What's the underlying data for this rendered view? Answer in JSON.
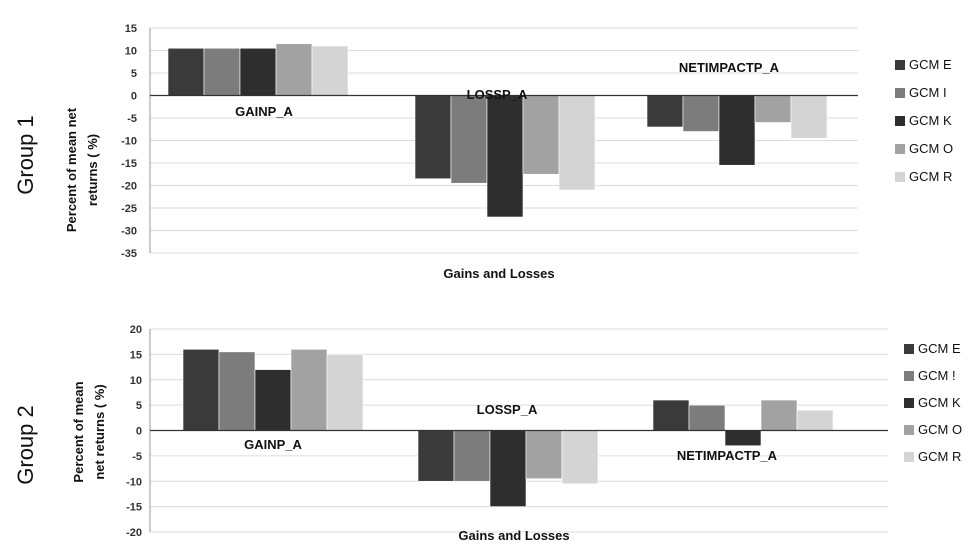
{
  "group_labels": [
    "Group 1",
    "Group 2"
  ],
  "colors": {
    "GCM E": "#3a3a3a",
    "GCM I": "#7c7c7c",
    "GCM K": "#2e2e2e",
    "GCM O": "#a2a2a2",
    "GCM R": "#d4d4d4"
  },
  "chart_data": [
    {
      "type": "bar",
      "panel": "Group 1",
      "categories": [
        "GAINP_A",
        "LOSSP_A",
        "NETIMPACTP_A"
      ],
      "series": [
        {
          "name": "GCM E",
          "values": [
            10.5,
            -18.5,
            -7.0
          ]
        },
        {
          "name": "GCM I",
          "values": [
            10.5,
            -19.5,
            -8.0
          ]
        },
        {
          "name": "GCM K",
          "values": [
            10.5,
            -27.0,
            -15.5
          ]
        },
        {
          "name": "GCM O",
          "values": [
            11.5,
            -17.5,
            -6.0
          ]
        },
        {
          "name": "GCM R",
          "values": [
            11.0,
            -21.0,
            -9.5
          ]
        }
      ],
      "legend": [
        "GCM E",
        "GCM I",
        "GCM K",
        "GCM O",
        "GCM R"
      ],
      "legend_position": "right",
      "xlabel": "Gains and Losses",
      "ylabel": "Percent of mean net returns ( %)",
      "ylim": [
        -35,
        15
      ],
      "yticks": [
        15,
        10,
        5,
        0,
        -5,
        -10,
        -15,
        -20,
        -25,
        -30,
        -35
      ],
      "grid": true
    },
    {
      "type": "bar",
      "panel": "Group 2",
      "categories": [
        "GAINP_A",
        "LOSSP_A",
        "NETIMPACTP_A"
      ],
      "series": [
        {
          "name": "GCM E",
          "values": [
            16.0,
            -10.0,
            6.0
          ]
        },
        {
          "name": "GCM !",
          "values": [
            15.5,
            -10.0,
            5.0
          ]
        },
        {
          "name": "GCM K",
          "values": [
            12.0,
            -15.0,
            -3.0
          ]
        },
        {
          "name": "GCM O",
          "values": [
            16.0,
            -9.5,
            6.0
          ]
        },
        {
          "name": "GCM R",
          "values": [
            15.0,
            -10.5,
            4.0
          ]
        }
      ],
      "legend": [
        "GCM E",
        "GCM !",
        "GCM K",
        "GCM O",
        "GCM R"
      ],
      "legend_position": "right",
      "xlabel": "Gains and Losses",
      "ylabel": "Percent of mean net returns ( %)",
      "ylim": [
        -20,
        20
      ],
      "yticks": [
        20,
        15,
        10,
        5,
        0,
        -5,
        -10,
        -15,
        -20
      ],
      "grid": true
    }
  ]
}
